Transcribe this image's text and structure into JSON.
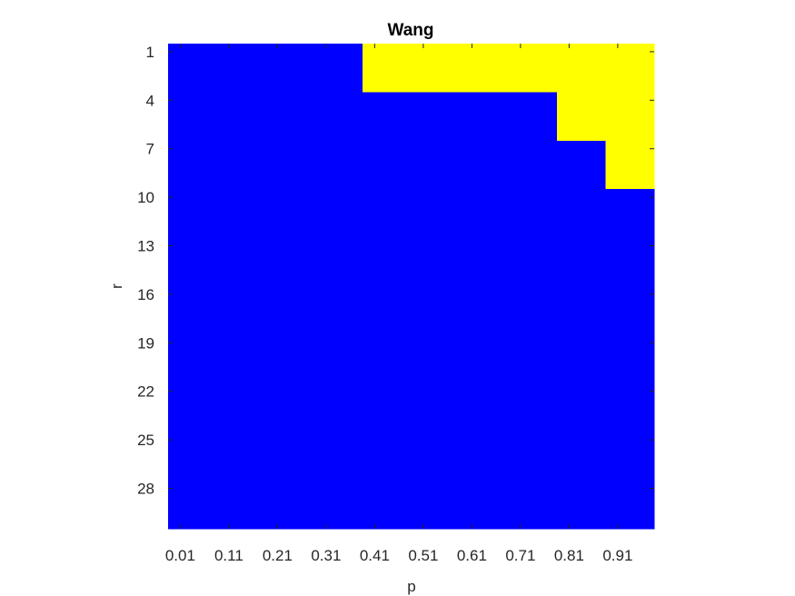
{
  "chart_data": {
    "type": "heatmap",
    "title": "Wang",
    "xlabel": "p",
    "ylabel": "r",
    "x_tick_labels": [
      "0.01",
      "0.11",
      "0.21",
      "0.31",
      "0.41",
      "0.51",
      "0.61",
      "0.71",
      "0.81",
      "0.91"
    ],
    "y_tick_labels": [
      "1",
      "4",
      "7",
      "10",
      "13",
      "16",
      "19",
      "22",
      "25",
      "28"
    ],
    "x_values": [
      0.01,
      0.06,
      0.11,
      0.16,
      0.21,
      0.26,
      0.31,
      0.36,
      0.41,
      0.46,
      0.51,
      0.56,
      0.61,
      0.66,
      0.71,
      0.76,
      0.81,
      0.86,
      0.91,
      0.96
    ],
    "y_values": [
      1,
      2,
      3,
      4,
      5,
      6,
      7,
      8,
      9,
      10,
      11,
      12,
      13,
      14,
      15,
      16,
      17,
      18,
      19,
      20,
      21,
      22,
      23,
      24,
      25,
      26,
      27,
      28,
      29,
      30
    ],
    "regions": [
      {
        "x_min": 0.41,
        "x_max": 0.96,
        "y_min": 1,
        "y_max": 3,
        "value": 1
      },
      {
        "x_min": 0.81,
        "x_max": 0.96,
        "y_min": 4,
        "y_max": 6,
        "value": 1
      },
      {
        "x_min": 0.91,
        "x_max": 0.96,
        "y_min": 7,
        "y_max": 9,
        "value": 1
      }
    ],
    "default_value": 0,
    "colors": {
      "0": "#0000ff",
      "1": "#ffff00"
    },
    "y_direction": "reversed",
    "grid": false,
    "legend": "none"
  }
}
